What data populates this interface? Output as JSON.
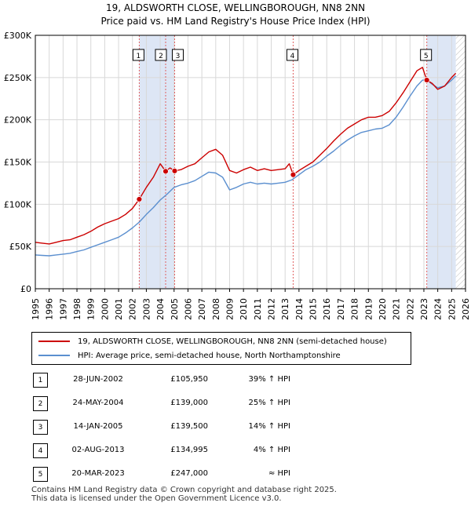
{
  "title_line1": "19, ALDSWORTH CLOSE, WELLINGBOROUGH, NN8 2NN",
  "title_line2": "Price paid vs. HM Land Registry's House Price Index (HPI)",
  "colors": {
    "property": "#cc0000",
    "hpi": "#5b8fcf",
    "highlight": "#dde6f5"
  },
  "legend": {
    "property_label": "19, ALDSWORTH CLOSE, WELLINGBOROUGH, NN8 2NN (semi-detached house)",
    "hpi_label": "HPI: Average price, semi-detached house, North Northamptonshire"
  },
  "sales": [
    {
      "num": "1",
      "date": "28-JUN-2002",
      "price": "£105,950",
      "rel": "39% ↑ HPI",
      "year": 2002.49,
      "value": 105950
    },
    {
      "num": "2",
      "date": "24-MAY-2004",
      "price": "£139,000",
      "rel": "25% ↑ HPI",
      "year": 2004.39,
      "value": 139000
    },
    {
      "num": "3",
      "date": "14-JAN-2005",
      "price": "£139,500",
      "rel": "14% ↑ HPI",
      "year": 2005.04,
      "value": 139500
    },
    {
      "num": "4",
      "date": "02-AUG-2013",
      "price": "£134,995",
      "rel": "4% ↑ HPI",
      "year": 2013.58,
      "value": 134995
    },
    {
      "num": "5",
      "date": "20-MAR-2023",
      "price": "£247,000",
      "rel": "≈ HPI",
      "year": 2023.21,
      "value": 247000
    }
  ],
  "footer_line1": "Contains HM Land Registry data © Crown copyright and database right 2025.",
  "footer_line2": "This data is licensed under the Open Government Licence v3.0.",
  "chart_data": {
    "type": "line",
    "title": "19, ALDSWORTH CLOSE, WELLINGBOROUGH, NN8 2NN — Price paid vs. HM Land Registry's House Price Index (HPI)",
    "xlabel": "",
    "ylabel": "",
    "xlim": [
      1995,
      2026
    ],
    "ylim": [
      0,
      300000
    ],
    "yticks": [
      0,
      50000,
      100000,
      150000,
      200000,
      250000,
      300000
    ],
    "ytick_labels": [
      "£0",
      "£50K",
      "£100K",
      "£150K",
      "£200K",
      "£250K",
      "£300K"
    ],
    "xticks": [
      "1995",
      "1996",
      "1997",
      "1998",
      "1999",
      "2000",
      "2001",
      "2002",
      "2003",
      "2004",
      "2005",
      "2006",
      "2007",
      "2008",
      "2009",
      "2010",
      "2011",
      "2012",
      "2013",
      "2014",
      "2015",
      "2016",
      "2017",
      "2018",
      "2019",
      "2020",
      "2021",
      "2022",
      "2023",
      "2024",
      "2025",
      "2026"
    ],
    "grid": true,
    "highlight_ranges": [
      [
        2002.49,
        2005.04
      ],
      [
        2023.21,
        2025.3
      ]
    ],
    "hatch_from": 2025.3,
    "series": [
      {
        "name": "19, ALDSWORTH CLOSE, WELLINGBOROUGH, NN8 2NN (semi-detached house)",
        "x": [
          1995,
          1995.5,
          1996,
          1996.5,
          1997,
          1997.5,
          1998,
          1998.5,
          1999,
          1999.5,
          2000,
          2000.5,
          2001,
          2001.5,
          2002,
          2002.49,
          2003,
          2003.5,
          2004,
          2004.39,
          2004.7,
          2005.04,
          2005.5,
          2006,
          2006.5,
          2007,
          2007.5,
          2008,
          2008.5,
          2009,
          2009.5,
          2010,
          2010.5,
          2011,
          2011.5,
          2012,
          2012.5,
          2013,
          2013.3,
          2013.58,
          2014,
          2014.5,
          2015,
          2015.5,
          2016,
          2016.5,
          2017,
          2017.5,
          2018,
          2018.5,
          2019,
          2019.5,
          2020,
          2020.5,
          2021,
          2021.5,
          2022,
          2022.5,
          2022.9,
          2023.21,
          2023.6,
          2024,
          2024.5,
          2025,
          2025.3
        ],
        "values": [
          55000,
          54000,
          53000,
          55000,
          57000,
          58000,
          61000,
          64000,
          68000,
          73000,
          77000,
          80000,
          83000,
          88000,
          95000,
          105950,
          120000,
          132000,
          148000,
          139000,
          143000,
          139500,
          141000,
          145000,
          148000,
          155000,
          162000,
          165000,
          158000,
          140000,
          137000,
          141000,
          144000,
          140000,
          142000,
          140000,
          141000,
          142000,
          148000,
          134995,
          140000,
          145000,
          150000,
          158000,
          166000,
          175000,
          183000,
          190000,
          195000,
          200000,
          203000,
          203000,
          205000,
          210000,
          220000,
          232000,
          245000,
          258000,
          262000,
          247000,
          243000,
          236000,
          240000,
          250000,
          255000
        ]
      },
      {
        "name": "HPI: Average price, semi-detached house, North Northamptonshire",
        "x": [
          1995,
          1995.5,
          1996,
          1996.5,
          1997,
          1997.5,
          1998,
          1998.5,
          1999,
          1999.5,
          2000,
          2000.5,
          2001,
          2001.5,
          2002,
          2002.5,
          2003,
          2003.5,
          2004,
          2004.5,
          2005,
          2005.5,
          2006,
          2006.5,
          2007,
          2007.5,
          2008,
          2008.5,
          2009,
          2009.5,
          2010,
          2010.5,
          2011,
          2011.5,
          2012,
          2012.5,
          2013,
          2013.5,
          2014,
          2014.5,
          2015,
          2015.5,
          2016,
          2016.5,
          2017,
          2017.5,
          2018,
          2018.5,
          2019,
          2019.5,
          2020,
          2020.5,
          2021,
          2021.5,
          2022,
          2022.5,
          2022.9,
          2023.21,
          2023.6,
          2024,
          2024.5,
          2025,
          2025.3
        ],
        "values": [
          40000,
          39500,
          39000,
          40000,
          41000,
          42000,
          44000,
          46000,
          49000,
          52000,
          55000,
          58000,
          61000,
          66000,
          72000,
          79000,
          88000,
          96000,
          105000,
          112000,
          120000,
          123000,
          125000,
          128000,
          133000,
          138000,
          137000,
          132000,
          117000,
          120000,
          124000,
          126000,
          124000,
          125000,
          124000,
          125000,
          126000,
          129000,
          135000,
          141000,
          145000,
          150000,
          157000,
          163000,
          170000,
          176000,
          181000,
          185000,
          187000,
          189000,
          190000,
          194000,
          203000,
          215000,
          228000,
          240000,
          247000,
          247000,
          242000,
          238000,
          240000,
          247000,
          252000
        ]
      }
    ]
  }
}
